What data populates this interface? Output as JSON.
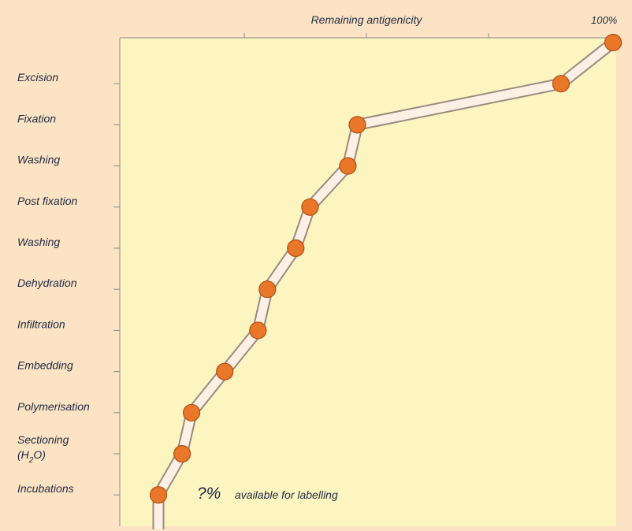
{
  "colors": {
    "frame": "#fbe3c4",
    "plot_bg": "#fdf5c0",
    "axis": "#8b8b8b",
    "track_fill": "#fdf0e4",
    "track_edge": "#9a8a80",
    "marker": "#e9772a",
    "marker_edge": "#b24d12",
    "text": "#1e2a44"
  },
  "chart_data": {
    "type": "line",
    "title": "",
    "xlabel": "Remaining antigenicity",
    "x_end_label": "100%",
    "xlim": [
      0,
      100
    ],
    "grid": false,
    "categories": [
      "",
      "Excision",
      "Fixation",
      "Washing",
      "Post fixation",
      "Washing",
      "Dehydration",
      "Infiltration",
      "Embedding",
      "Polymerisation",
      "Sectioning (H2O)",
      "Incubations"
    ],
    "series": [
      {
        "values": [
          100,
          89,
          46,
          44,
          36,
          33,
          27,
          25,
          18,
          11,
          9,
          4
        ]
      }
    ],
    "annotation": {
      "mark": "?%",
      "text": "available for labelling"
    }
  }
}
